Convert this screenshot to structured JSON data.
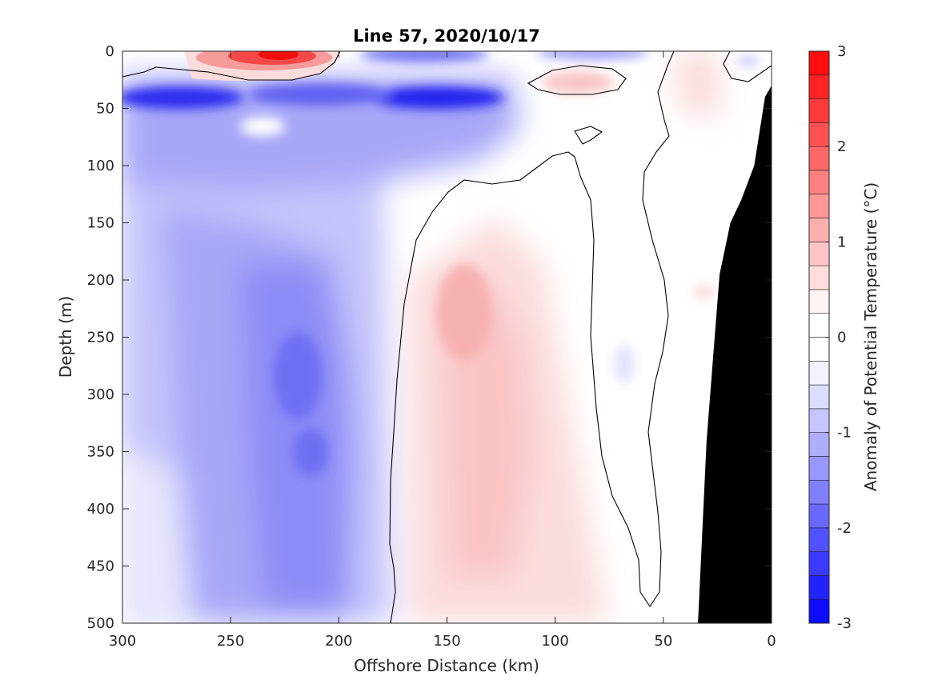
{
  "chart_data": {
    "type": "heatmap",
    "subtype": "filled-contour",
    "title": "Line 57, 2020/10/17",
    "xlabel": "Offshore Distance (km)",
    "ylabel": "Depth (m)",
    "xlim": [
      300,
      0
    ],
    "ylim": [
      0,
      500
    ],
    "x_reversed": true,
    "y_reversed": true,
    "xticks": [
      "300",
      "250",
      "200",
      "150",
      "100",
      "50",
      "0"
    ],
    "yticks": [
      "0",
      "50",
      "100",
      "150",
      "200",
      "250",
      "300",
      "350",
      "400",
      "450",
      "500"
    ],
    "colorbar": {
      "label": "Anomaly of Potential Temperature (°C)",
      "range": [
        -3,
        3
      ],
      "step": 0.25,
      "ticks": [
        "3",
        "2",
        "1",
        "0",
        "-1",
        "-2",
        "-3"
      ]
    },
    "zero_contour_line": "#000000",
    "bathymetry_fill": "#000000",
    "bathymetry": {
      "x": [
        34,
        30,
        24,
        19,
        14,
        8,
        3,
        0
      ],
      "y": [
        500,
        340,
        195,
        150,
        130,
        100,
        40,
        30
      ]
    },
    "palette": {
      "warm_max": "#ff0000",
      "cold_max": "#0000ff",
      "neutral": "#ffffff"
    },
    "anomaly_features": [
      {
        "x": 225,
        "y": 5,
        "value": 2.6
      },
      {
        "x": 280,
        "y": 40,
        "value": -1.9
      },
      {
        "x": 150,
        "y": 40,
        "value": -2.1
      },
      {
        "x": 205,
        "y": 45,
        "value": -1.8
      },
      {
        "x": 95,
        "y": 28,
        "value": 0.6
      },
      {
        "x": 160,
        "y": 5,
        "value": -1.2
      },
      {
        "x": 215,
        "y": 290,
        "value": -1.6
      },
      {
        "x": 213,
        "y": 355,
        "value": -1.5
      },
      {
        "x": 225,
        "y": 380,
        "value": -1.1
      },
      {
        "x": 275,
        "y": 200,
        "value": -0.8
      },
      {
        "x": 138,
        "y": 280,
        "value": 1.0
      },
      {
        "x": 137,
        "y": 400,
        "value": 0.7
      },
      {
        "x": 40,
        "y": 30,
        "value": 0.3
      },
      {
        "x": 20,
        "y": 210,
        "value": 0.3
      },
      {
        "x": 68,
        "y": 280,
        "value": -0.35
      },
      {
        "x": 290,
        "y": 420,
        "value": -0.3
      }
    ]
  }
}
